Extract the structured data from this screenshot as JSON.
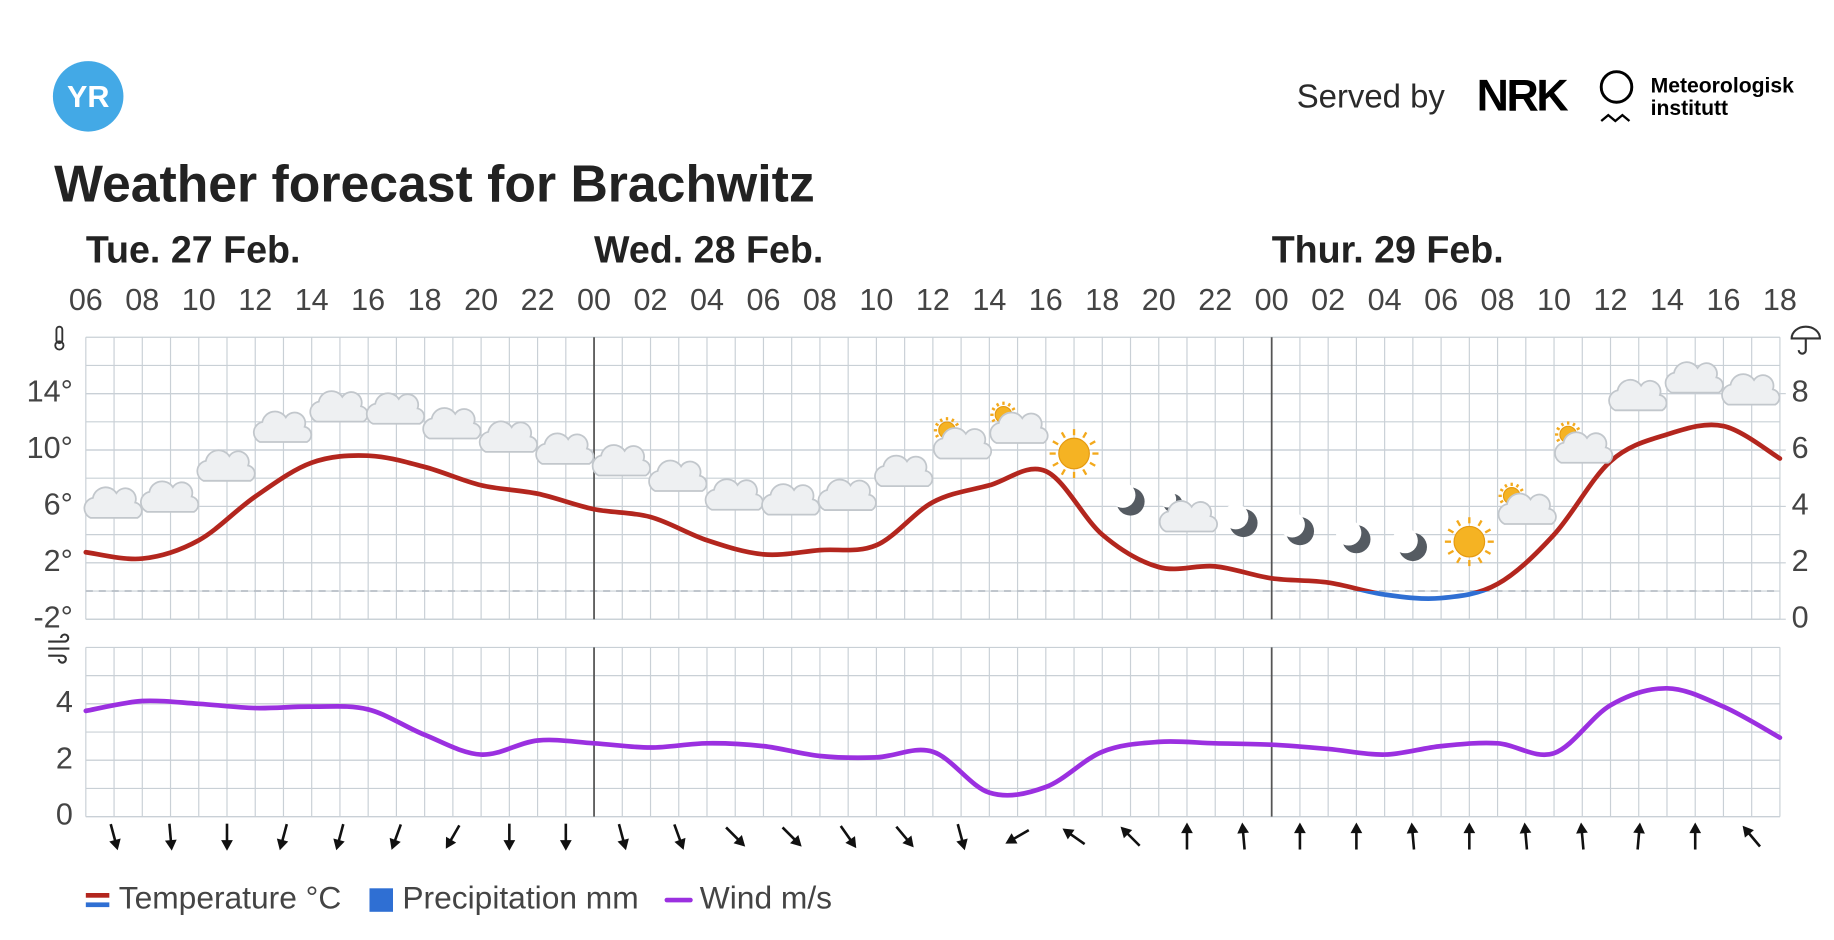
{
  "header": {
    "logo": "YR",
    "served_by": "Served by",
    "nrk": "NRK",
    "met": [
      "Meteorologisk",
      "institutt"
    ]
  },
  "chart_data": [
    {
      "type": "line",
      "title": "Weather forecast for Brachwitz",
      "days": [
        "Tue. 27 Feb.",
        "Wed. 28 Feb.",
        "Thur. 29 Feb."
      ],
      "categories": [
        "06",
        "08",
        "10",
        "12",
        "14",
        "16",
        "18",
        "20",
        "22",
        "00",
        "02",
        "04",
        "06",
        "08",
        "10",
        "12",
        "14",
        "16",
        "18",
        "20",
        "22",
        "00",
        "02",
        "04",
        "06",
        "08",
        "10",
        "12",
        "14",
        "16",
        "18"
      ],
      "series": [
        {
          "name": "Temperature °C",
          "color": "#b3261e",
          "negative_color": "#2f6fd3",
          "values": [
            2.75,
            2.3,
            3.6,
            6.7,
            9.1,
            9.6,
            8.8,
            7.5,
            6.9,
            5.8,
            5.25,
            3.6,
            2.6,
            2.9,
            3.25,
            6.3,
            7.5,
            8.5,
            4,
            1.7,
            1.75,
            0.9,
            0.6,
            -0.25,
            -0.5,
            0.5,
            4,
            9.2,
            11.1,
            11.7,
            9.4
          ]
        },
        {
          "name": "Precipitation mm",
          "color": "#2f6fd3",
          "axis": "y2",
          "values": [
            0,
            0,
            0,
            0,
            0,
            0,
            0,
            0,
            0,
            0,
            0,
            0,
            0,
            0,
            0,
            0,
            0,
            0,
            0,
            0,
            0,
            0,
            0,
            0,
            0,
            0,
            0,
            0,
            0,
            0,
            0
          ]
        }
      ],
      "ylim": [
        -2,
        18
      ],
      "yticks": [
        {
          "value": -2,
          "label": "-2°"
        },
        {
          "value": 2,
          "label": "2°"
        },
        {
          "value": 6,
          "label": "6°"
        },
        {
          "value": 10,
          "label": "10°"
        },
        {
          "value": 14,
          "label": "14°"
        }
      ],
      "y2lim": [
        0,
        10
      ],
      "y2ticks": [
        0,
        2,
        4,
        6,
        8
      ],
      "grid": true,
      "zero_line": true,
      "weather_symbols": [
        "cloudy",
        "cloudy",
        "cloudy",
        "cloudy",
        "cloudy",
        "cloudy",
        "cloudy",
        "cloudy",
        "cloudy",
        "cloudy",
        "cloudy",
        "cloudy",
        "cloudy",
        "cloudy",
        "cloudy",
        "partly-sunny",
        "partly-sunny",
        "sun",
        "moon",
        "partly-cloudy-night",
        "moon",
        "moon",
        "moon",
        "moon",
        "sun",
        "partly-sunny",
        "partly-sunny",
        "cloudy",
        "cloudy",
        "cloudy"
      ]
    },
    {
      "type": "line",
      "series": [
        {
          "name": "Wind m/s",
          "color": "#9b30e0",
          "values": [
            3.75,
            4.1,
            4.0,
            3.85,
            3.9,
            3.8,
            2.9,
            2.2,
            2.7,
            2.6,
            2.45,
            2.6,
            2.5,
            2.15,
            2.1,
            2.3,
            0.85,
            1.05,
            2.3,
            2.65,
            2.6,
            2.55,
            2.4,
            2.2,
            2.5,
            2.6,
            2.25,
            3.95,
            4.55,
            3.9,
            2.8
          ]
        }
      ],
      "ylim": [
        0,
        6
      ],
      "yticks": [
        0,
        2,
        4
      ],
      "grid": true,
      "directions": [
        165,
        175,
        180,
        195,
        195,
        200,
        210,
        180,
        180,
        165,
        160,
        135,
        135,
        145,
        140,
        165,
        240,
        305,
        315,
        0,
        355,
        0,
        0,
        355,
        0,
        355,
        355,
        5,
        0,
        320
      ]
    }
  ]
}
